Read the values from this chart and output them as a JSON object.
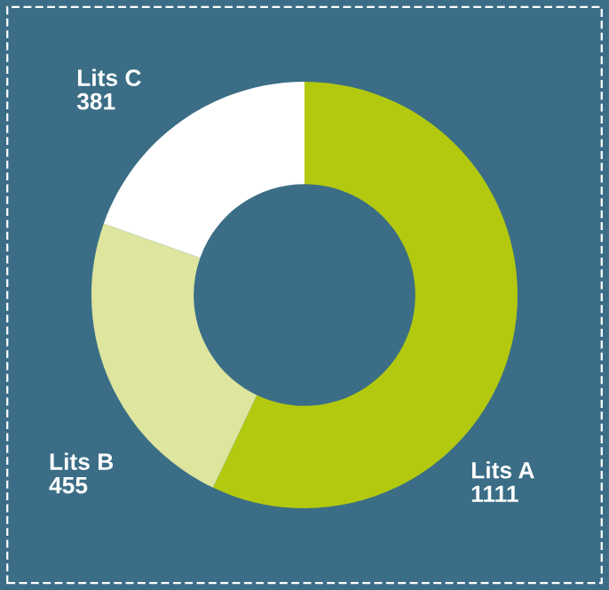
{
  "chart_data": {
    "type": "donut",
    "categories": [
      "Lits A",
      "Lits B",
      "Lits C"
    ],
    "values": [
      1111,
      455,
      381
    ],
    "colors": [
      "#b3c90f",
      "#dde59e",
      "#ffffff"
    ],
    "data_labels": true,
    "legend": false
  }
}
